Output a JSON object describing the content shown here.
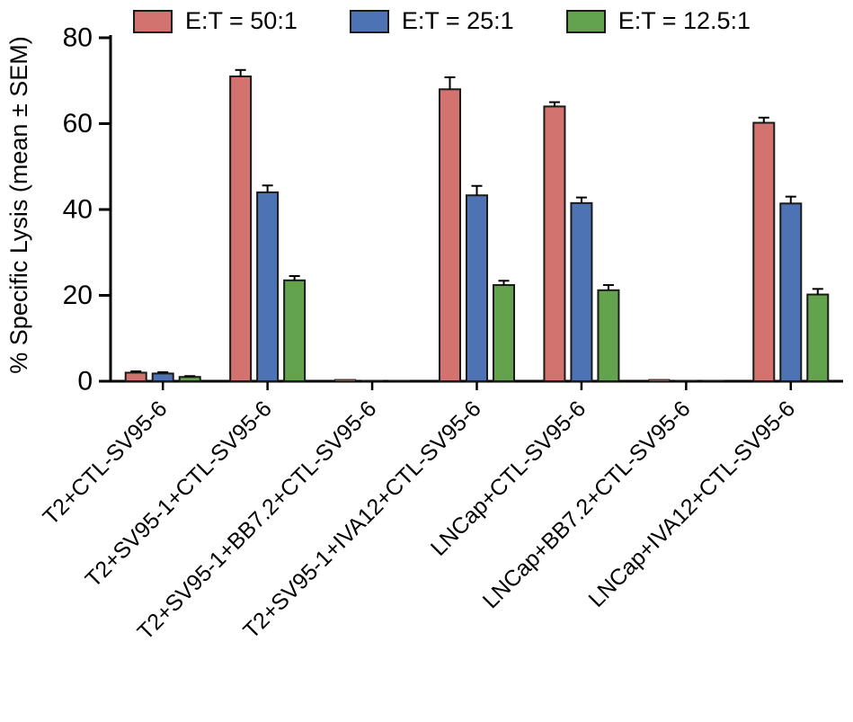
{
  "chart_data": {
    "type": "bar",
    "title": "",
    "xlabel": "",
    "ylabel": "% Specific Lysis (mean ± SEM)",
    "ylim": [
      0,
      80
    ],
    "yticks": [
      0,
      20,
      40,
      60,
      80
    ],
    "grid": false,
    "legend_position": "top",
    "categories": [
      "T2+CTL-SV95-6",
      "T2+SV95-1+CTL-SV95-6",
      "T2+SV95-1+BB7.2+CTL-SV95-6",
      "T2+SV95-1+IVA12+CTL-SV95-6",
      "LNCap+CTL-SV95-6",
      "LNCap+BB7.2+CTL-SV95-6",
      "LNCap+IVA12+CTL-SV95-6"
    ],
    "series": [
      {
        "name": "E:T = 50:1",
        "color": "#d3736f",
        "values": [
          2.0,
          71.0,
          0.4,
          68.0,
          64.0,
          0.4,
          60.2
        ],
        "errors": [
          0.3,
          1.5,
          0,
          2.8,
          1.0,
          0,
          1.2
        ]
      },
      {
        "name": "E:T = 25:1",
        "color": "#4e73b4",
        "values": [
          1.8,
          44.0,
          0.2,
          43.3,
          41.5,
          0.2,
          41.4
        ],
        "errors": [
          0.3,
          1.6,
          0,
          2.2,
          1.3,
          0,
          1.6
        ]
      },
      {
        "name": "E:T = 12.5:1",
        "color": "#64a34e",
        "values": [
          1.0,
          23.5,
          0.2,
          22.4,
          21.2,
          0.2,
          20.2
        ],
        "errors": [
          0.2,
          1.0,
          0,
          1.0,
          1.2,
          0,
          1.3
        ]
      }
    ],
    "error_bar_style": "upper cap, black",
    "bar_outline_color": "#1a1a1a",
    "axis_color": "#000000"
  }
}
